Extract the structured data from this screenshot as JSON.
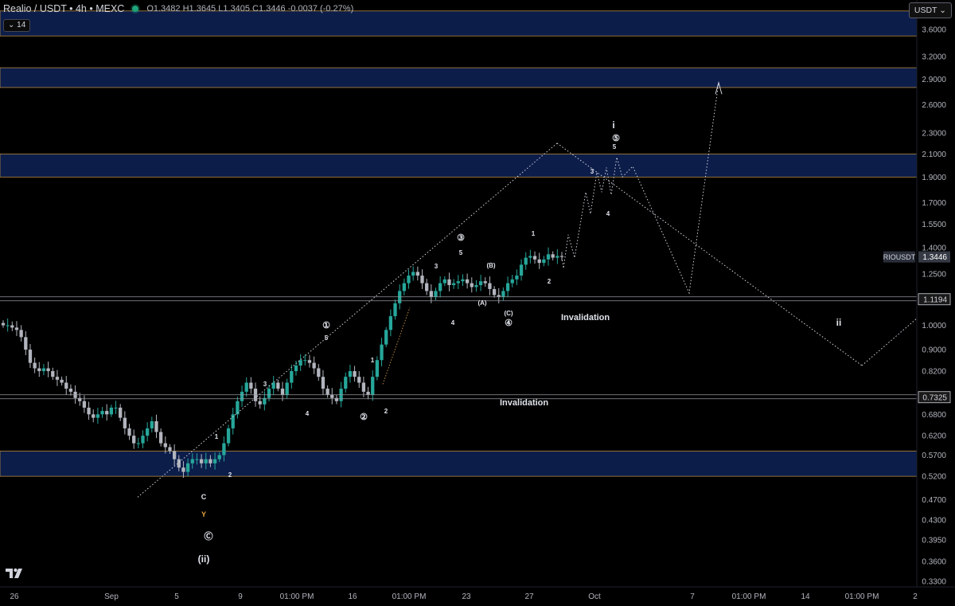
{
  "header": {
    "symbol": "Realio / USDT • 4h • MEXC",
    "ohlc": "O1.3482  H1.3645  L1.3405  C1.3446  -0.0037 (-0.27%)",
    "collapse_label": "14",
    "currency_label": "USDT"
  },
  "colors": {
    "background": "#000000",
    "up": "#26a69a",
    "down": "#b2b5be",
    "zone": "#0c1d4a",
    "zone_border": "#b5893f",
    "trendline": "#d1d4dc"
  },
  "icons": [
    "chevron-down-icon",
    "tradingview-logo-icon"
  ],
  "chart_data": {
    "type": "candlestick",
    "scale": "log",
    "ylim": [
      0.3,
      3.9
    ],
    "y_ticks": [
      "3.6000",
      "3.2000",
      "2.9000",
      "2.6000",
      "2.3000",
      "2.1000",
      "1.9000",
      "1.7000",
      "1.5500",
      "1.4000",
      "1.2500",
      "1.1194",
      "1.0000",
      "0.9000",
      "0.8200",
      "0.7325",
      "0.6800",
      "0.6200",
      "0.5700",
      "0.5200",
      "0.4700",
      "0.4300",
      "0.3950",
      "0.3600",
      "0.3300"
    ],
    "x_ticks": [
      "26",
      "Sep",
      "5",
      "9",
      "01:00 PM",
      "16",
      "01:00 PM",
      "23",
      "27",
      "Oct",
      "7",
      "01:00 PM",
      "14",
      "01:00 PM",
      "2"
    ],
    "last_price_label": "RIOUSDT",
    "last_price": "1.3446",
    "price_levels": [
      {
        "label": "1.1194",
        "value": 1.1194,
        "text": "Invalidation"
      },
      {
        "label": "0.7325",
        "value": 0.7325,
        "text": "Invalidation"
      }
    ],
    "zones": [
      {
        "low": 3.5,
        "high": 3.9
      },
      {
        "low": 2.8,
        "high": 3.05
      },
      {
        "low": 1.9,
        "high": 2.1
      },
      {
        "low": 0.52,
        "high": 0.58
      }
    ],
    "wave_labels": [
      "(ii)",
      "Ⓒ",
      "Y",
      "C",
      "1",
      "2",
      "3",
      "4",
      "5",
      "①",
      "1",
      "2",
      "②",
      "3",
      "4",
      "5",
      "③",
      "(A)",
      "(B)",
      "(C)",
      "④",
      "1",
      "2",
      "3",
      "4",
      "5",
      "⑤",
      "i",
      "ii"
    ],
    "close_path": [
      1.0,
      1.0,
      0.99,
      0.98,
      0.95,
      0.9,
      0.85,
      0.83,
      0.82,
      0.83,
      0.82,
      0.8,
      0.79,
      0.78,
      0.76,
      0.75,
      0.73,
      0.72,
      0.7,
      0.68,
      0.67,
      0.68,
      0.69,
      0.68,
      0.7,
      0.7,
      0.67,
      0.64,
      0.62,
      0.6,
      0.6,
      0.62,
      0.64,
      0.66,
      0.63,
      0.6,
      0.59,
      0.58,
      0.56,
      0.54,
      0.53,
      0.55,
      0.56,
      0.56,
      0.55,
      0.56,
      0.55,
      0.56,
      0.57,
      0.6,
      0.64,
      0.68,
      0.72,
      0.75,
      0.78,
      0.76,
      0.72,
      0.71,
      0.73,
      0.76,
      0.78,
      0.76,
      0.74,
      0.78,
      0.82,
      0.84,
      0.86,
      0.86,
      0.85,
      0.83,
      0.8,
      0.76,
      0.74,
      0.73,
      0.72,
      0.76,
      0.8,
      0.82,
      0.8,
      0.78,
      0.75,
      0.74,
      0.8,
      0.86,
      0.92,
      0.98,
      1.04,
      1.1,
      1.16,
      1.2,
      1.24,
      1.26,
      1.24,
      1.2,
      1.16,
      1.13,
      1.16,
      1.2,
      1.22,
      1.19,
      1.2,
      1.21,
      1.22,
      1.2,
      1.18,
      1.19,
      1.21,
      1.2,
      1.17,
      1.14,
      1.13,
      1.16,
      1.2,
      1.22,
      1.24,
      1.3,
      1.34,
      1.35,
      1.33,
      1.31,
      1.33,
      1.36,
      1.34,
      1.35,
      1.3446
    ],
    "projection_path": [
      1.3446,
      1.28,
      1.48,
      1.34,
      1.78,
      1.62,
      1.94,
      1.78,
      1.98,
      1.76,
      2.07,
      1.9,
      1.99,
      1.15,
      2.86
    ],
    "trendlines": [
      {
        "from": [
          0.475,
          "early-sep"
        ],
        "to": [
          2.2,
          "late-sep"
        ]
      },
      {
        "from": [
          2.2,
          "late-sep"
        ],
        "to": [
          0.84,
          "mid-oct"
        ]
      }
    ]
  }
}
